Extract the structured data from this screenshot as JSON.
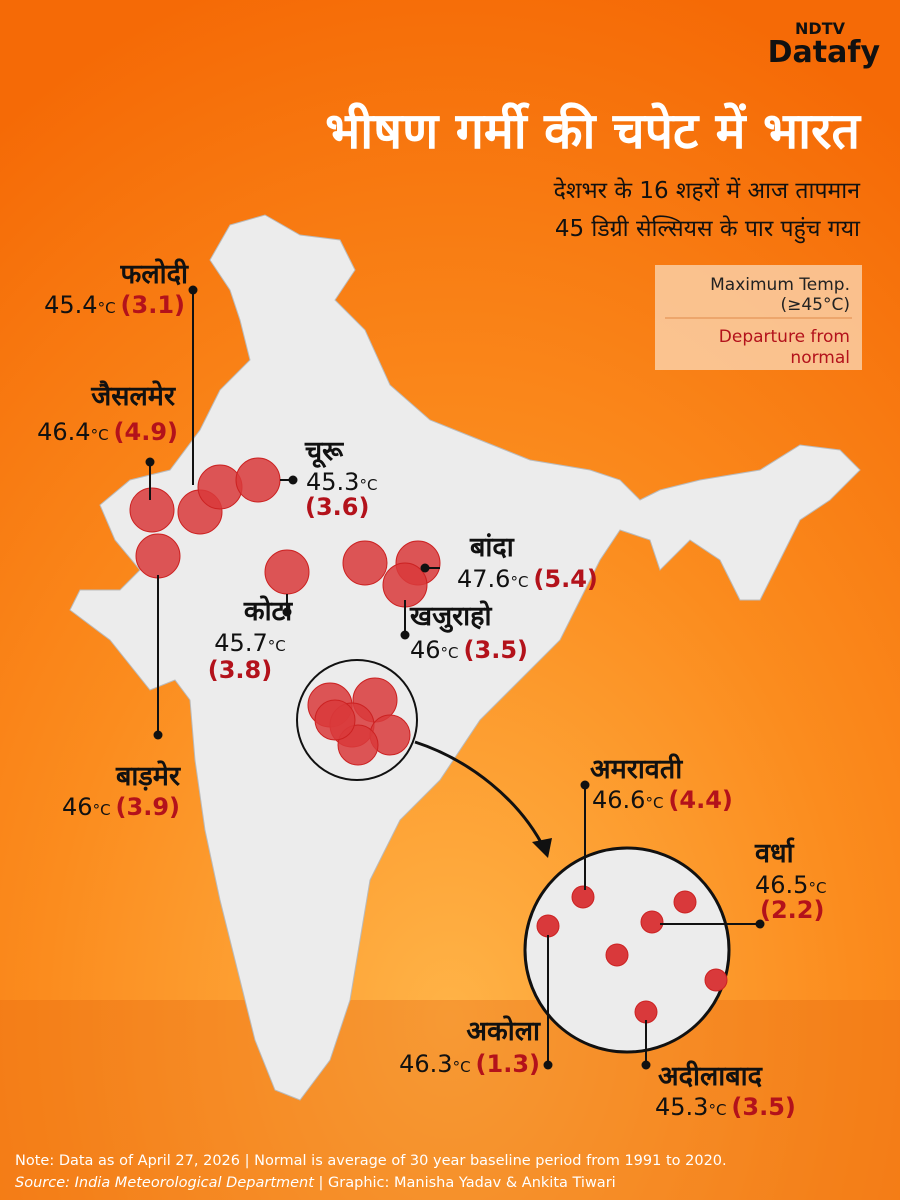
{
  "header": {
    "brand_top": "NDTV",
    "brand": "Datafy",
    "title": "भीषण गर्मी की चपेट में भारत",
    "subtitle": [
      "देशभर के 16 शहरों में आज तापमान",
      "45 डिग्री सेल्सियस के पार पहुंच गया"
    ]
  },
  "legend": {
    "max_temp": [
      "Maximum Temp.",
      "(≥45°C)"
    ],
    "departure": [
      "Departure from",
      "normal"
    ]
  },
  "cities": [
    {
      "name": "फलोदी",
      "temp": "45.4",
      "unit": "°C",
      "departure": "(3.1)"
    },
    {
      "name": "जैसलमेर",
      "temp": "46.4",
      "unit": "°C",
      "departure": "(4.9)"
    },
    {
      "name": "चूरू",
      "temp": "45.3",
      "unit": "°C",
      "departure": "(3.6)"
    },
    {
      "name": "बाड़मेर",
      "temp": "46",
      "unit": "°C",
      "departure": "(3.9)"
    },
    {
      "name": "कोटा",
      "temp": "45.7",
      "unit": "°C",
      "departure": "(3.8)"
    },
    {
      "name": "बांदा",
      "temp": "47.6",
      "unit": "°C",
      "departure": "(5.4)"
    },
    {
      "name": "खजुराहो",
      "temp": "46",
      "unit": "°C",
      "departure": "(3.5)"
    },
    {
      "name": "अमरावती",
      "temp": "46.6",
      "unit": "°C",
      "departure": "(4.4)"
    },
    {
      "name": "वर्धा",
      "temp": "46.5",
      "unit": "°C",
      "departure": "(2.2)"
    },
    {
      "name": "अकोला",
      "temp": "46.3",
      "unit": "°C",
      "departure": "(1.3)"
    },
    {
      "name": "अदीलाबाद",
      "temp": "45.3",
      "unit": "°C",
      "departure": "(3.5)"
    }
  ],
  "footer": {
    "note": "Note: Data as of April 27, 2026 | Normal is average of 30 year baseline period from 1991 to 2020.",
    "source": "Source: India Meteorological Department",
    "credit": " | Graphic: Manisha Yadav & Ankita Tiwari"
  }
}
